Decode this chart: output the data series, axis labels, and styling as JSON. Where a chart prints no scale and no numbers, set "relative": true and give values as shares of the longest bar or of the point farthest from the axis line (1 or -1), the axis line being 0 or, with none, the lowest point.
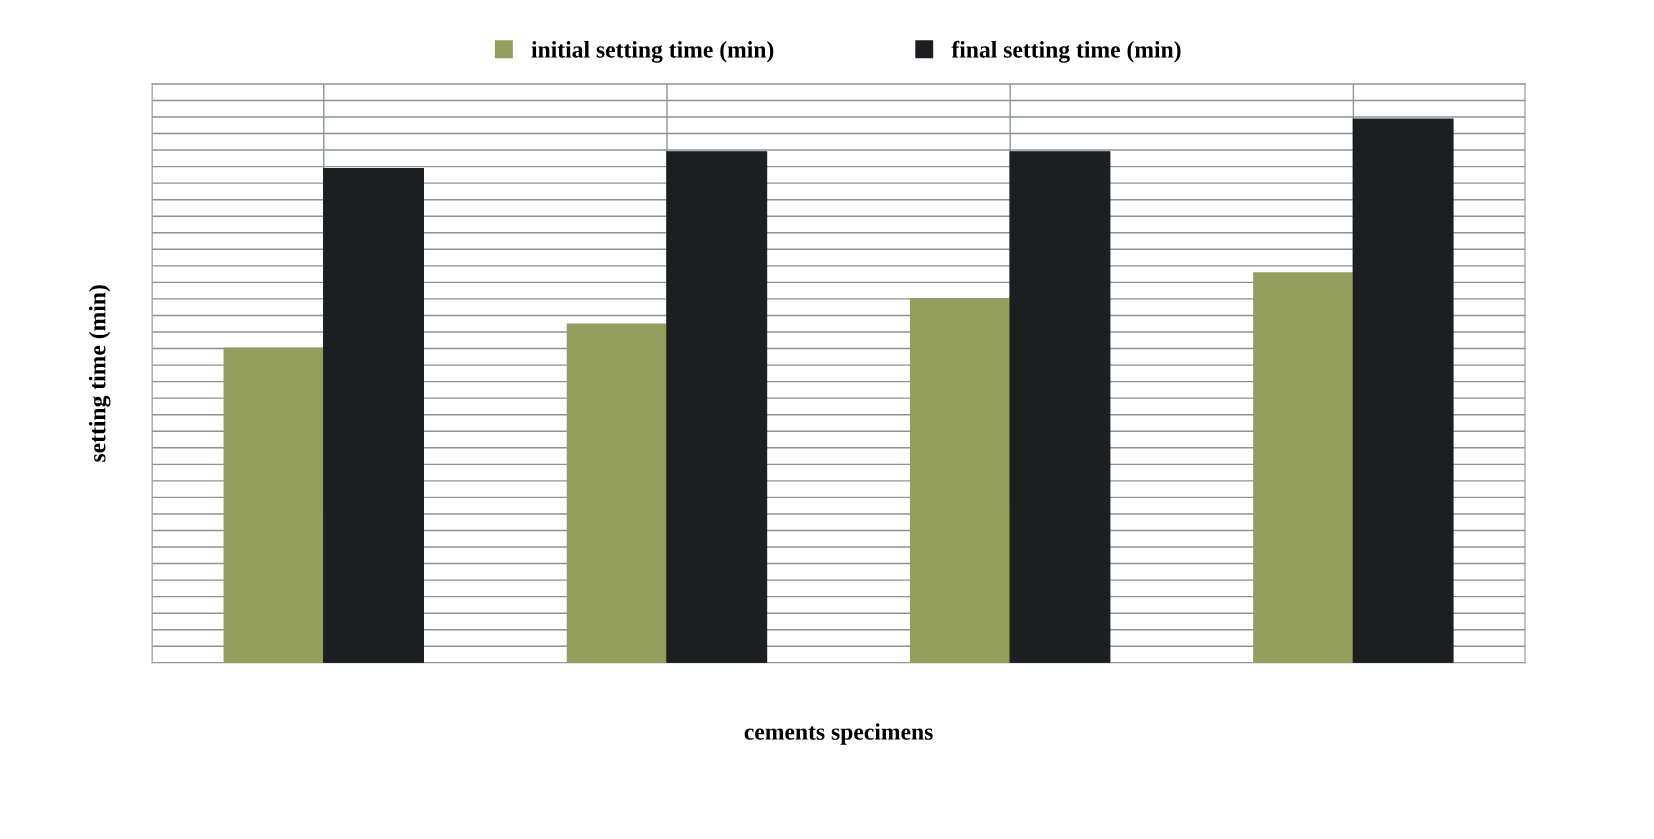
{
  "chart_data": {
    "type": "bar",
    "relative": true,
    "xlabel": "cements specimens",
    "ylabel": "setting time (min)",
    "categories": [
      null,
      null,
      null,
      null
    ],
    "series": [
      {
        "name": "initial setting time (min)",
        "color": "#949e5c",
        "values": [
          0.579,
          0.623,
          0.67,
          0.717
        ]
      },
      {
        "name": "final setting time (min)",
        "color": "#1c1f21",
        "values": [
          0.909,
          0.94,
          0.94,
          1.0
        ]
      }
    ],
    "grid": true,
    "legend": "top"
  }
}
